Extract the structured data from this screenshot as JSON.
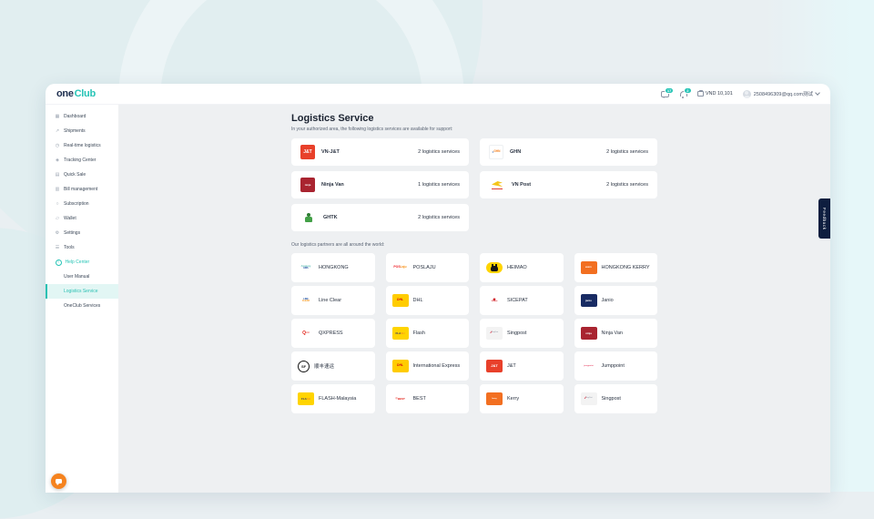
{
  "header": {
    "logo_one": "one",
    "logo_club": "Club",
    "chat_badge": "17",
    "bell_badge": "2",
    "balance": "VND 10,101",
    "account": "2508496309@qq.com测试"
  },
  "sidebar": {
    "items": [
      {
        "icon": "▦",
        "label": "Dashboard"
      },
      {
        "icon": "↗",
        "label": "Shipments"
      },
      {
        "icon": "◷",
        "label": "Real-time logistics"
      },
      {
        "icon": "◈",
        "label": "Tracking Center"
      },
      {
        "icon": "▤",
        "label": "Quick Sale"
      },
      {
        "icon": "▥",
        "label": "Bill management"
      },
      {
        "icon": "○",
        "label": "Subscription"
      },
      {
        "icon": "▱",
        "label": "Wallet"
      },
      {
        "icon": "⚙",
        "label": "Settings"
      },
      {
        "icon": "☰",
        "label": "Tools"
      }
    ],
    "help_center": {
      "icon": "?",
      "label": "Help Center"
    },
    "help_children": [
      {
        "label": "User Manual",
        "active": false
      },
      {
        "label": "Logistics Service",
        "active": true
      },
      {
        "label": "OneClub Services",
        "active": false
      }
    ]
  },
  "main": {
    "title": "Logistics Service",
    "subtitle": "In your authorized area, the following logistics services are available for support:",
    "services": [
      {
        "name": "VN-J&T",
        "count": "2 logistics services",
        "logo": {
          "bg": "#e8402a",
          "spans": [
            {
              "t": "J&T",
              "c": "#ffffff",
              "s": 5,
              "b": true
            }
          ]
        }
      },
      {
        "name": "GHN",
        "count": "2 logistics services",
        "logo": {
          "bg": "#ffffff",
          "border": "#eef0f2",
          "spans": [
            {
              "t": "≡",
              "c": "#1c4ea0",
              "s": 3
            },
            {
              "t": "GHN",
              "c": "#f58220",
              "s": 3.2,
              "b": true
            }
          ]
        }
      },
      {
        "name": "Ninja Van",
        "count": "1 logistics services",
        "logo": {
          "bg": "#a92430",
          "spans": [
            {
              "t": "ninja",
              "c": "#ffffff",
              "s": 2.8,
              "b": true
            }
          ]
        }
      },
      {
        "name": "VN Post",
        "count": "2 logistics services",
        "logo": {
          "shape": "bird"
        }
      },
      {
        "name": "GHTK",
        "count": "2 logistics services",
        "logo": {
          "shape": "man"
        }
      }
    ],
    "partners_label": "Our logistics partners are all around the world:",
    "partners": [
      {
        "name": "HONGKONG",
        "logo": {
          "bg": "#ffffff",
          "col": true,
          "spans": [
            {
              "t": "hongkong",
              "c": "#2aa89c",
              "s": 2.4,
              "i": true
            },
            {
              "t": "EMS",
              "c": "#1c4ea0",
              "s": 2.4,
              "b": true
            }
          ]
        }
      },
      {
        "name": "POSLAJU",
        "logo": {
          "bg": "#ffffff",
          "spans": [
            {
              "t": "POS",
              "c": "#ed1c24",
              "s": 3.4,
              "b": true
            },
            {
              "t": "Laju",
              "c": "#f7941d",
              "s": 3.4,
              "b": true
            }
          ]
        }
      },
      {
        "name": "HEIMAO",
        "logo": {
          "shape": "cat"
        }
      },
      {
        "name": "HONGKONG KERRY",
        "logo": {
          "bg": "#f26f21",
          "spans": [
            {
              "t": "KERRY",
              "c": "#ffffff",
              "s": 2,
              "b": true
            }
          ]
        }
      },
      {
        "name": "Line Clear",
        "logo": {
          "bg": "#ffffff",
          "col": true,
          "spans": [
            {
              "t": "LINE",
              "c": "#1c4ea0",
              "s": 2.4,
              "b": true
            },
            {
              "t": "CLEAR",
              "c": "#f7941d",
              "s": 2.4,
              "b": true
            }
          ]
        }
      },
      {
        "name": "DHL",
        "logo": {
          "bg": "#ffcc00",
          "spans": [
            {
              "t": "DHL",
              "c": "#d40511",
              "s": 3.4,
              "b": true,
              "i": true
            }
          ]
        }
      },
      {
        "name": "SICEPAT",
        "logo": {
          "bg": "#ffffff",
          "col": true,
          "spans": [
            {
              "t": "◆",
              "c": "#d2232a",
              "s": 4.5
            },
            {
              "t": "SiCepat",
              "c": "#d2232a",
              "s": 1.8,
              "b": true
            }
          ]
        }
      },
      {
        "name": "Janio",
        "logo": {
          "bg": "#182b63",
          "spans": [
            {
              "t": "janio",
              "c": "#ffffff",
              "s": 3,
              "b": true
            }
          ]
        }
      },
      {
        "name": "QXPRESS",
        "logo": {
          "bg": "#ffffff",
          "spans": [
            {
              "t": "Q",
              "c": "#e2231a",
              "s": 5,
              "b": true
            },
            {
              "t": "x10",
              "c": "#e2231a",
              "s": 2.4
            }
          ]
        }
      },
      {
        "name": "Flash",
        "logo": {
          "bg": "#ffd400",
          "spans": [
            {
              "t": "FLA",
              "c": "#2b2e6b",
              "s": 3,
              "b": true
            },
            {
              "t": "SH",
              "c": "#f7941d",
              "s": 3,
              "b": true
            }
          ]
        }
      },
      {
        "name": "Singpost",
        "logo": {
          "bg": "#f3f3f3",
          "spans": [
            {
              "t": "∕∕",
              "c": "#d0021b",
              "s": 3.5,
              "b": true
            },
            {
              "t": "SingPost",
              "c": "#8a93a3",
              "s": 1.8
            }
          ]
        }
      },
      {
        "name": "Ninja Van",
        "logo": {
          "bg": "#a92430",
          "spans": [
            {
              "t": "ninja",
              "c": "#ffffff",
              "s": 2.8,
              "b": true
            }
          ]
        }
      },
      {
        "name": "顺丰速运",
        "logo": {
          "shape": "sf",
          "text": "SF"
        }
      },
      {
        "name": "International Express",
        "logo": {
          "bg": "#ffcc00",
          "spans": [
            {
              "t": "DHL",
              "c": "#d40511",
              "s": 3.4,
              "b": true,
              "i": true
            }
          ]
        }
      },
      {
        "name": "J&T",
        "logo": {
          "bg": "#e8402a",
          "spans": [
            {
              "t": "J&T",
              "c": "#ffffff",
              "s": 4,
              "b": true
            }
          ]
        }
      },
      {
        "name": "Jumppoint",
        "logo": {
          "bg": "#ffffff",
          "spans": [
            {
              "t": "jumppoint",
              "c": "#e8506e",
              "s": 2.2,
              "b": true
            }
          ]
        }
      },
      {
        "name": "FLASH-Malaysia",
        "logo": {
          "bg": "#ffd400",
          "spans": [
            {
              "t": "FLA",
              "c": "#2b2e6b",
              "s": 3,
              "b": true
            },
            {
              "t": "SH",
              "c": "#f7941d",
              "s": 3,
              "b": true
            }
          ]
        }
      },
      {
        "name": "BEST",
        "logo": {
          "bg": "#ffffff",
          "spans": [
            {
              "t": "◎",
              "c": "#e2231a",
              "s": 3.2,
              "b": true
            },
            {
              "t": "BEST",
              "c": "#e2231a",
              "s": 3,
              "b": true
            }
          ]
        }
      },
      {
        "name": "Kerry",
        "logo": {
          "bg": "#f26f21",
          "spans": [
            {
              "t": "kerry",
              "c": "#ffffff",
              "s": 2.2,
              "b": true
            }
          ]
        }
      },
      {
        "name": "Singpost",
        "logo": {
          "bg": "#f3f3f3",
          "spans": [
            {
              "t": "∕∕",
              "c": "#d0021b",
              "s": 3.5,
              "b": true
            },
            {
              "t": "SingPost",
              "c": "#8a93a3",
              "s": 1.8
            }
          ]
        }
      }
    ]
  },
  "feedback_tab": "Feedback",
  "colors": {
    "accent_teal": "#27c4b6",
    "navy": "#1d2e4e",
    "feedback_bg": "#0e1e3f",
    "fab_orange": "#f5831f",
    "main_bg": "#eef0f2"
  }
}
